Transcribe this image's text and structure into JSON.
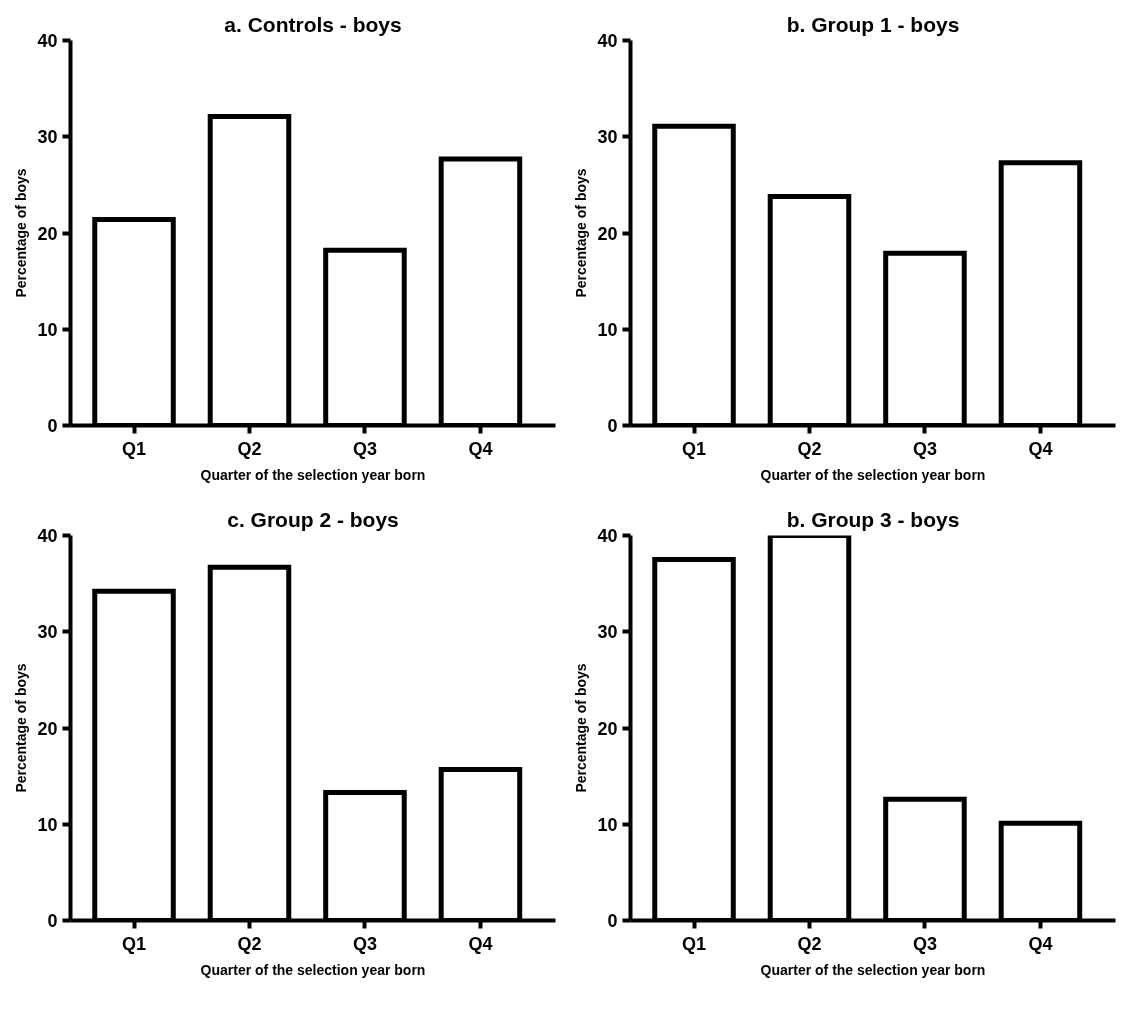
{
  "chart_data": [
    {
      "type": "bar",
      "title": "a. Controls - boys",
      "xlabel": "Quarter of the selection year born",
      "ylabel": "Percentage of boys",
      "categories": [
        "Q1",
        "Q2",
        "Q3",
        "Q4"
      ],
      "values": [
        21.4,
        32.1,
        18.2,
        27.7
      ],
      "color": "#ffffff",
      "ylim": [
        0,
        40
      ],
      "yticks": [
        0,
        10,
        20,
        30,
        40
      ]
    },
    {
      "type": "bar",
      "title": "b. Group 1 - boys",
      "xlabel": "Quarter of the selection year born",
      "ylabel": "Percentage of boys",
      "categories": [
        "Q1",
        "Q2",
        "Q3",
        "Q4"
      ],
      "values": [
        31.1,
        23.8,
        17.9,
        27.3
      ],
      "color": "#ffffff",
      "ylim": [
        0,
        40
      ],
      "yticks": [
        0,
        10,
        20,
        30,
        40
      ]
    },
    {
      "type": "bar",
      "title": "c. Group 2 - boys",
      "xlabel": "Quarter of the selection year born",
      "ylabel": "Percentage of boys",
      "categories": [
        "Q1",
        "Q2",
        "Q3",
        "Q4"
      ],
      "values": [
        34.2,
        36.7,
        13.3,
        15.7
      ],
      "color": "#ffffff",
      "ylim": [
        0,
        40
      ],
      "yticks": [
        0,
        10,
        20,
        30,
        40
      ]
    },
    {
      "type": "bar",
      "title": "b. Group 3 - boys",
      "xlabel": "Quarter of the selection year born",
      "ylabel": "Percentage of boys",
      "categories": [
        "Q1",
        "Q2",
        "Q3",
        "Q4"
      ],
      "values": [
        37.5,
        40.0,
        12.6,
        10.1
      ],
      "color": "#ffffff",
      "ylim": [
        0,
        40
      ],
      "yticks": [
        0,
        10,
        20,
        30,
        40
      ]
    }
  ]
}
